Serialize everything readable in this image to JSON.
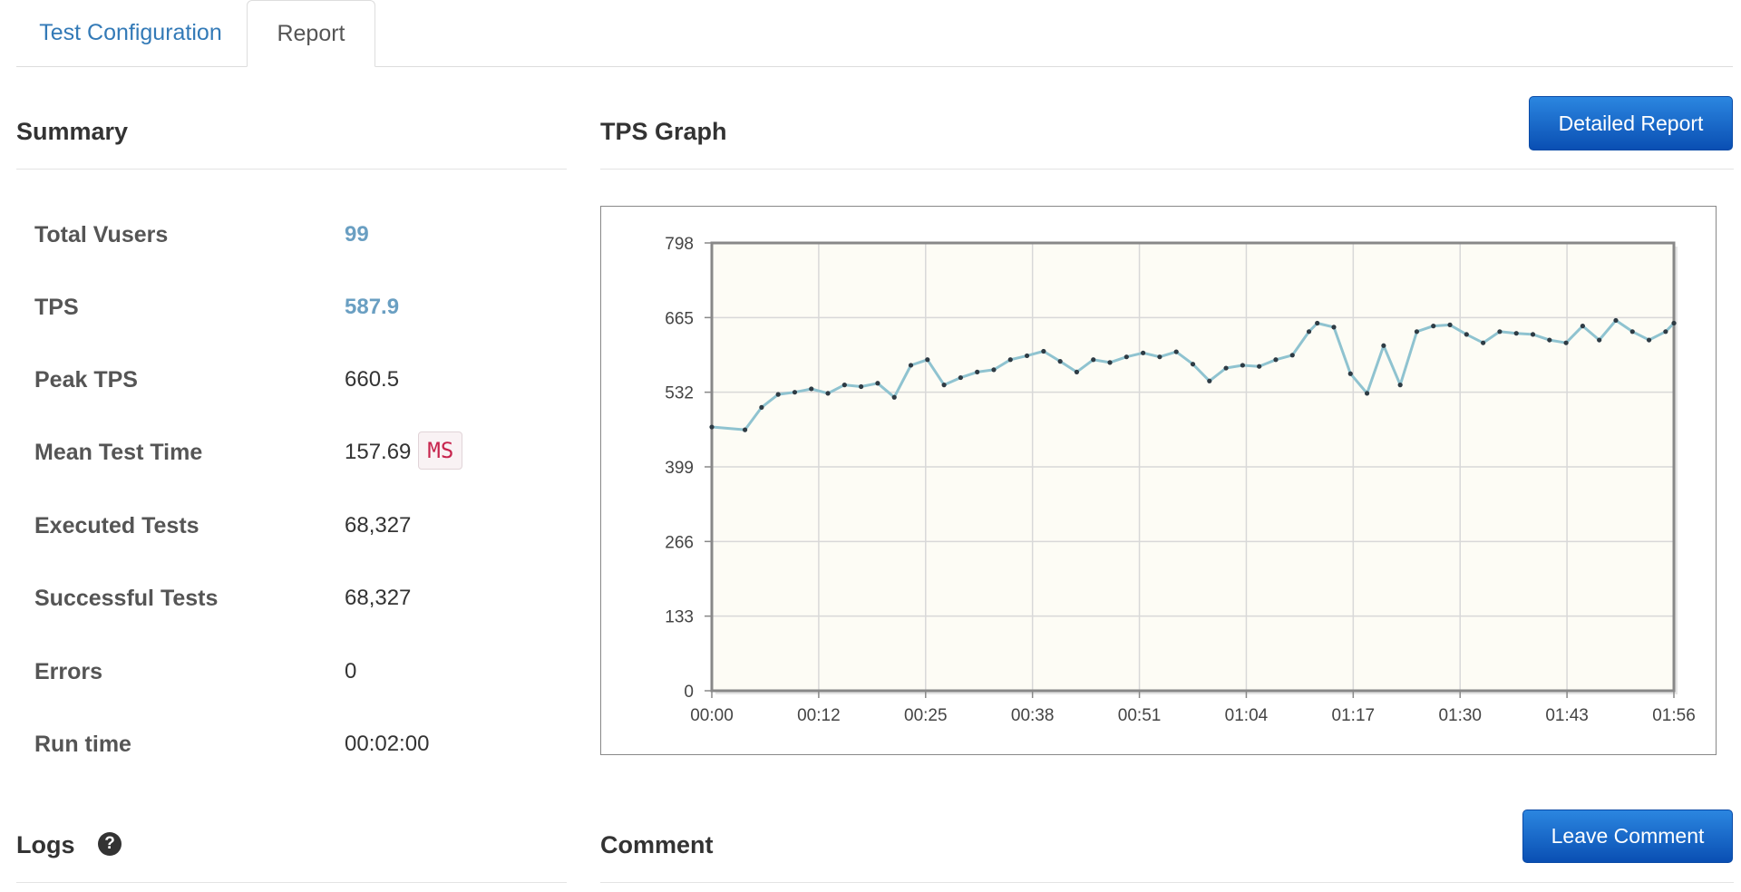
{
  "tabs": [
    {
      "label": "Test Configuration",
      "active": false
    },
    {
      "label": "Report",
      "active": true
    }
  ],
  "summary": {
    "title": "Summary",
    "rows": [
      {
        "label": "Total Vusers",
        "value": "99",
        "style": "link"
      },
      {
        "label": "TPS",
        "value": "587.9",
        "style": "link"
      },
      {
        "label": "Peak TPS",
        "value": "660.5",
        "style": "plain"
      },
      {
        "label": "Mean Test Time",
        "value": "157.69",
        "unit": "MS",
        "style": "plain"
      },
      {
        "label": "Executed Tests",
        "value": "68,327",
        "style": "plain"
      },
      {
        "label": "Successful Tests",
        "value": "68,327",
        "style": "plain"
      },
      {
        "label": "Errors",
        "value": "0",
        "style": "plain"
      },
      {
        "label": "Run time",
        "value": "00:02:00",
        "style": "plain"
      }
    ]
  },
  "tps_graph": {
    "title": "TPS Graph",
    "detailed_report_label": "Detailed Report"
  },
  "logs": {
    "title": "Logs",
    "help_glyph": "?"
  },
  "comment": {
    "title": "Comment",
    "leave_comment_label": "Leave Comment"
  },
  "colors": {
    "accent_blue": "#337ab7",
    "button_blue": "#0a5cc4",
    "line_color": "#8fc3d0",
    "plot_bg": "#fdfcf5",
    "unit_badge_text": "#c7254e"
  },
  "chart_data": {
    "type": "line",
    "title": "",
    "xlabel": "",
    "ylabel": "",
    "yticks": [
      "798",
      "665",
      "532",
      "399",
      "266",
      "133",
      "0"
    ],
    "xticks": [
      "00:00",
      "00:12",
      "00:25",
      "00:38",
      "00:51",
      "01:04",
      "01:17",
      "01:30",
      "01:43",
      "01:56"
    ],
    "ylim": [
      0,
      798
    ],
    "xlim_seconds": [
      0,
      116
    ],
    "grid": true,
    "series": [
      {
        "x": [
          0,
          4,
          6,
          8,
          10,
          12,
          14,
          16,
          18,
          20,
          22,
          24,
          26,
          28,
          30,
          32,
          34,
          36,
          38,
          40,
          42,
          44,
          46,
          48,
          50,
          52,
          54,
          56,
          58,
          60,
          62,
          64,
          66,
          68,
          70,
          72,
          73,
          75,
          77,
          79,
          81,
          83,
          85,
          87,
          89,
          91,
          93,
          95,
          97,
          99,
          101,
          103,
          105,
          107,
          109,
          111,
          113,
          115,
          116
        ],
        "values": [
          470,
          465,
          505,
          528,
          532,
          538,
          530,
          545,
          542,
          548,
          523,
          580,
          590,
          545,
          558,
          568,
          572,
          590,
          597,
          605,
          587,
          568,
          590,
          585,
          595,
          602,
          595,
          604,
          582,
          552,
          575,
          580,
          578,
          590,
          598,
          640,
          655,
          648,
          565,
          530,
          615,
          545,
          640,
          650,
          652,
          635,
          620,
          640,
          637,
          635,
          625,
          620,
          650,
          625,
          660,
          640,
          625,
          640,
          655
        ]
      }
    ]
  }
}
